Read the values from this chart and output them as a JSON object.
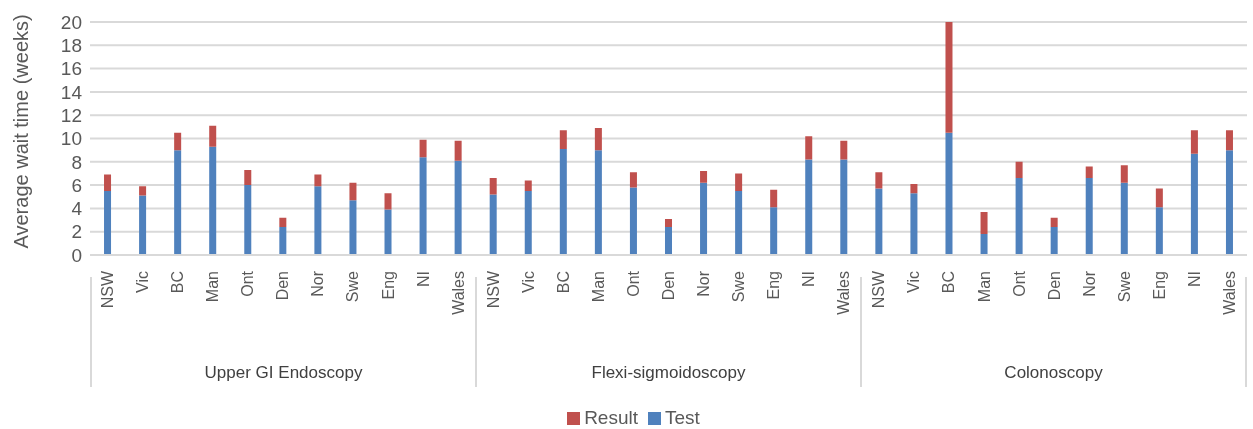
{
  "chart_data": {
    "type": "bar",
    "stacked": true,
    "ylabel": "Average wait time (weeks)",
    "categories": [
      "NSW",
      "Vic",
      "BC",
      "Man",
      "Ont",
      "Den",
      "Nor",
      "Swe",
      "Eng",
      "NI",
      "Wales",
      "NSW",
      "Vic",
      "BC",
      "Man",
      "Ont",
      "Den",
      "Nor",
      "Swe",
      "Eng",
      "NI",
      "Wales",
      "NSW",
      "Vic",
      "BC",
      "Man",
      "Ont",
      "Den",
      "Nor",
      "Swe",
      "Eng",
      "NI",
      "Wales"
    ],
    "series": [
      {
        "name": "Test",
        "color": "#4f81bd",
        "values": [
          5.5,
          5.1,
          9.0,
          9.3,
          6.0,
          2.4,
          5.9,
          4.7,
          3.9,
          8.4,
          8.1,
          5.2,
          5.5,
          9.1,
          9.0,
          5.8,
          2.4,
          6.2,
          5.5,
          4.1,
          8.2,
          8.2,
          5.7,
          5.3,
          10.5,
          1.8,
          6.6,
          2.4,
          6.6,
          6.2,
          4.1,
          8.7,
          9.0
        ]
      },
      {
        "name": "Result",
        "color": "#c0504d",
        "values": [
          1.4,
          0.8,
          1.5,
          1.8,
          1.3,
          0.8,
          1.0,
          1.5,
          1.4,
          1.5,
          1.7,
          1.4,
          0.9,
          1.6,
          1.9,
          1.3,
          0.7,
          1.0,
          1.5,
          1.5,
          2.0,
          1.6,
          1.4,
          0.8,
          9.5,
          1.9,
          1.4,
          0.8,
          1.0,
          1.5,
          1.6,
          2.0,
          1.7
        ]
      }
    ],
    "annotations": [
      "Upper GI Endoscopy",
      "Flexi-sigmoidoscopy",
      "Colonoscopy"
    ],
    "ylim": [
      0,
      20
    ],
    "yticks": [
      0,
      2,
      4,
      6,
      8,
      10,
      12,
      14,
      16,
      18,
      20
    ],
    "grid": "y",
    "legend": "bottom"
  }
}
